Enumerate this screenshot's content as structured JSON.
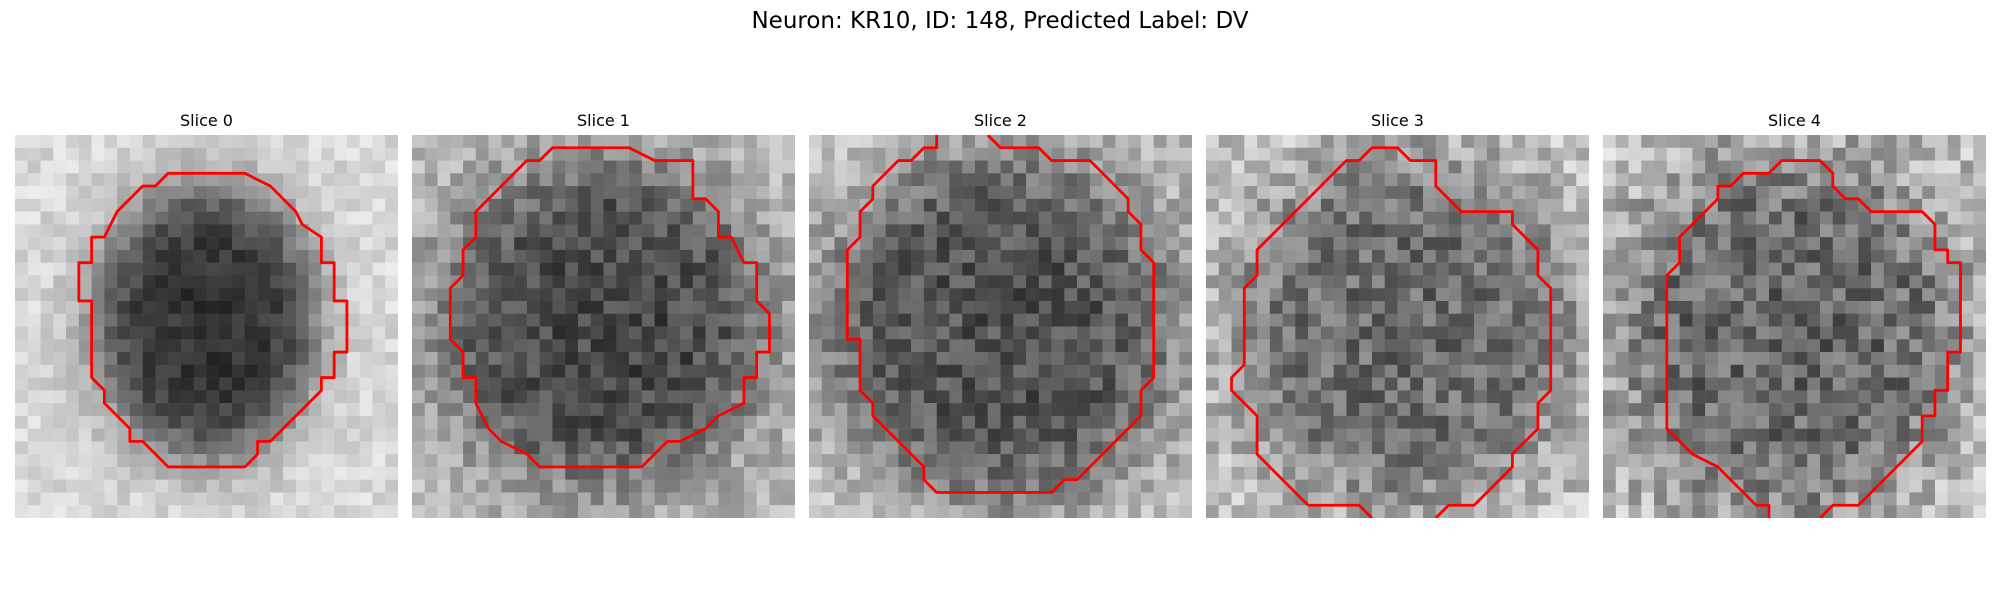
{
  "figure": {
    "title": "Neuron: KR10, ID: 148, Predicted Label: DV"
  },
  "contour_color": "#ff0000",
  "panels": [
    {
      "title": "Slice 0"
    },
    {
      "title": "Slice 1"
    },
    {
      "title": "Slice 2"
    },
    {
      "title": "Slice 3"
    },
    {
      "title": "Slice 4"
    }
  ]
}
